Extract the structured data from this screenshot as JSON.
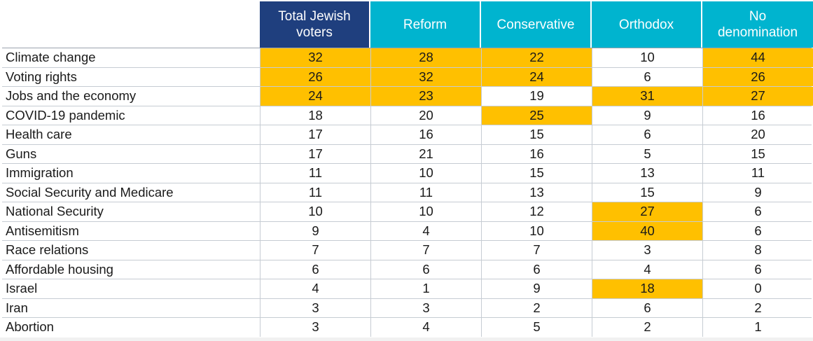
{
  "chart_data": {
    "type": "table",
    "columns": [
      "Total Jewish\nvoters",
      "Reform",
      "Conservative",
      "Orthodox",
      "No\ndenomination"
    ],
    "rows": [
      {
        "label": "Climate change",
        "values": [
          32,
          28,
          22,
          10,
          44
        ],
        "highlight": [
          true,
          true,
          true,
          false,
          true
        ]
      },
      {
        "label": "Voting rights",
        "values": [
          26,
          32,
          24,
          6,
          26
        ],
        "highlight": [
          true,
          true,
          true,
          false,
          true
        ]
      },
      {
        "label": "Jobs and the economy",
        "values": [
          24,
          23,
          19,
          31,
          27
        ],
        "highlight": [
          true,
          true,
          false,
          true,
          true
        ]
      },
      {
        "label": "COVID-19 pandemic",
        "values": [
          18,
          20,
          25,
          9,
          16
        ],
        "highlight": [
          false,
          false,
          true,
          false,
          false
        ]
      },
      {
        "label": "Health care",
        "values": [
          17,
          16,
          15,
          6,
          20
        ],
        "highlight": [
          false,
          false,
          false,
          false,
          false
        ]
      },
      {
        "label": "Guns",
        "values": [
          17,
          21,
          16,
          5,
          15
        ],
        "highlight": [
          false,
          false,
          false,
          false,
          false
        ]
      },
      {
        "label": "Immigration",
        "values": [
          11,
          10,
          15,
          13,
          11
        ],
        "highlight": [
          false,
          false,
          false,
          false,
          false
        ]
      },
      {
        "label": "Social Security and Medicare",
        "values": [
          11,
          11,
          13,
          15,
          9
        ],
        "highlight": [
          false,
          false,
          false,
          false,
          false
        ]
      },
      {
        "label": "National Security",
        "values": [
          10,
          10,
          12,
          27,
          6
        ],
        "highlight": [
          false,
          false,
          false,
          true,
          false
        ]
      },
      {
        "label": "Antisemitism",
        "values": [
          9,
          4,
          10,
          40,
          6
        ],
        "highlight": [
          false,
          false,
          false,
          true,
          false
        ]
      },
      {
        "label": "Race relations",
        "values": [
          7,
          7,
          7,
          3,
          8
        ],
        "highlight": [
          false,
          false,
          false,
          false,
          false
        ]
      },
      {
        "label": "Affordable housing",
        "values": [
          6,
          6,
          6,
          4,
          6
        ],
        "highlight": [
          false,
          false,
          false,
          false,
          false
        ]
      },
      {
        "label": "Israel",
        "values": [
          4,
          1,
          9,
          18,
          0
        ],
        "highlight": [
          false,
          false,
          false,
          true,
          false
        ]
      },
      {
        "label": "Iran",
        "values": [
          3,
          3,
          2,
          6,
          2
        ],
        "highlight": [
          false,
          false,
          false,
          false,
          false
        ]
      },
      {
        "label": "Abortion",
        "values": [
          3,
          4,
          5,
          2,
          1
        ],
        "highlight": [
          false,
          false,
          false,
          false,
          false
        ]
      }
    ]
  },
  "colors": {
    "header_primary": "#1f3f7e",
    "header_secondary": "#00b4cf",
    "highlight": "#ffc000"
  }
}
